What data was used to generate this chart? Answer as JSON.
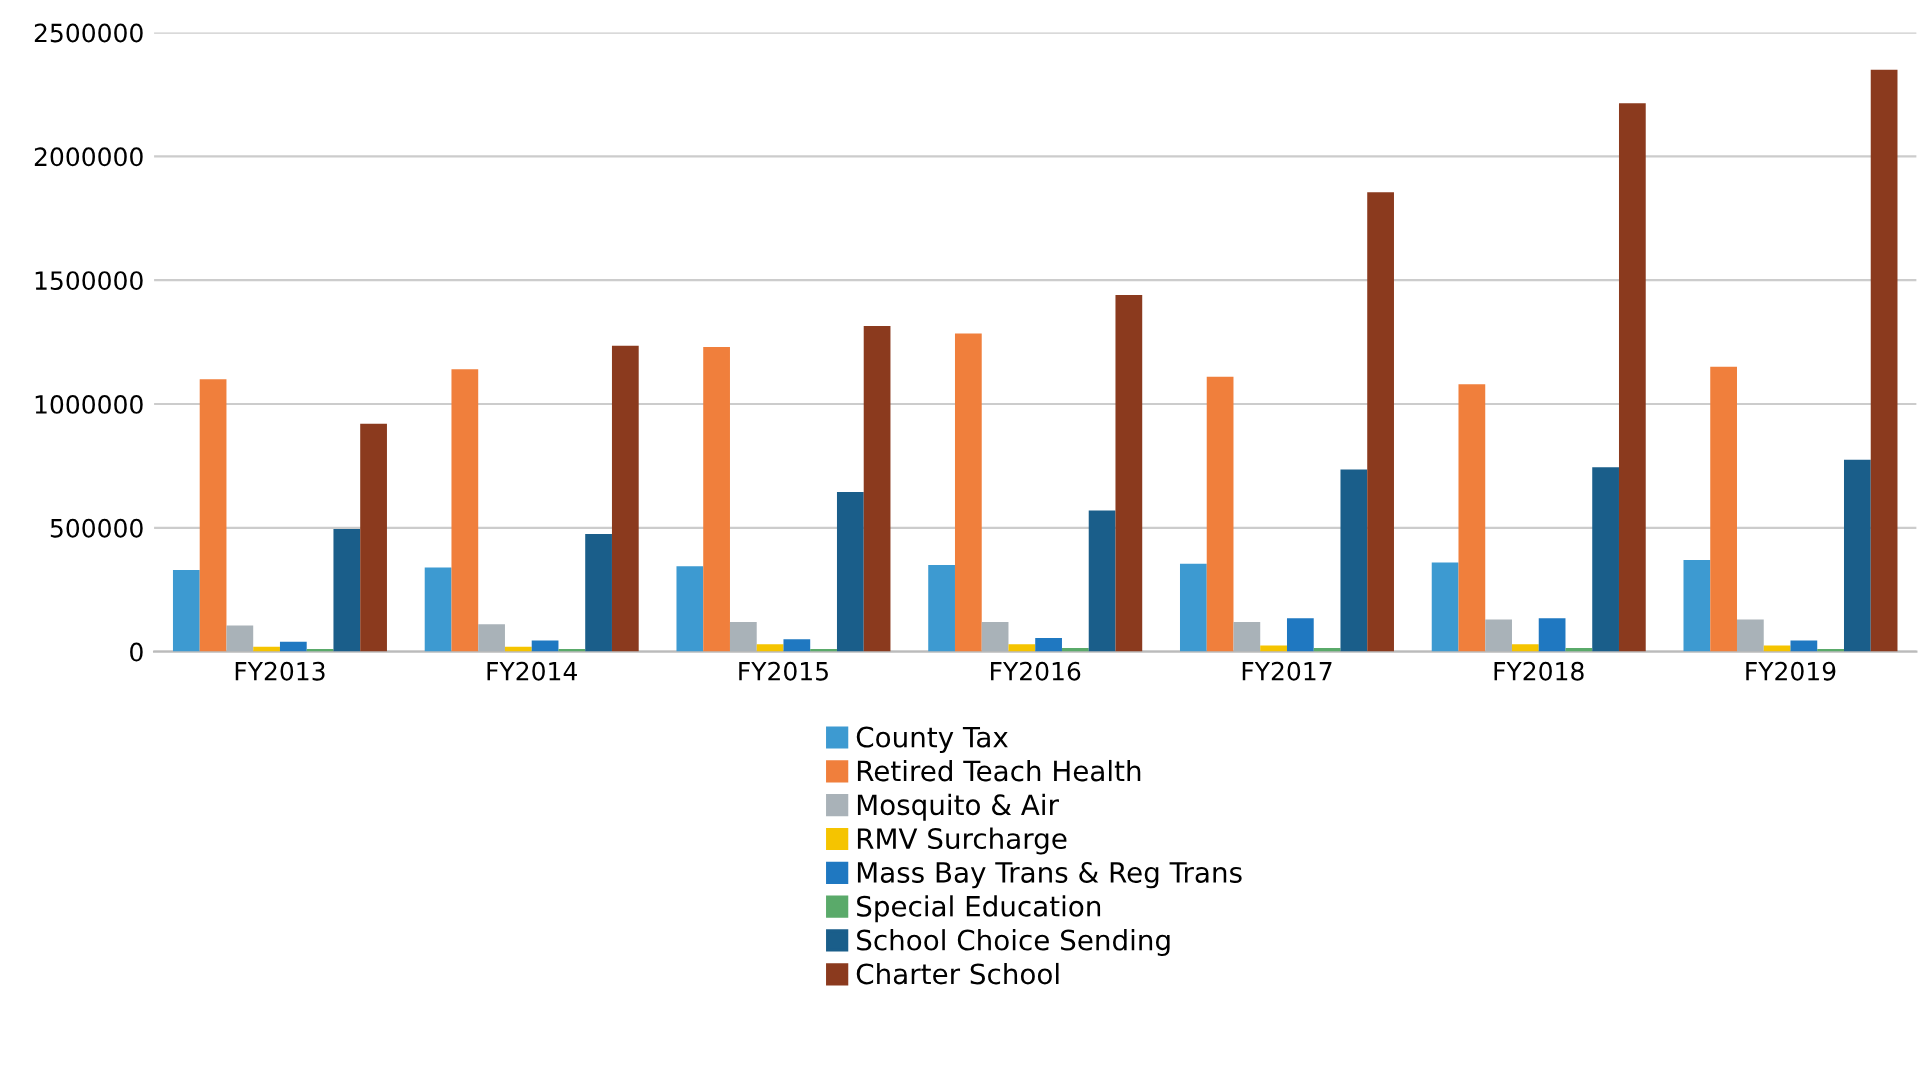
{
  "chart_data": {
    "type": "bar",
    "categories": [
      "FY2013",
      "FY2014",
      "FY2015",
      "FY2016",
      "FY2017",
      "FY2018",
      "FY2019"
    ],
    "series": [
      {
        "name": "County Tax",
        "color": "#3d9ad1",
        "values": [
          330000,
          340000,
          345000,
          350000,
          355000,
          360000,
          370000
        ]
      },
      {
        "name": "Retired Teach Health",
        "color": "#f07f3c",
        "values": [
          1100000,
          1140000,
          1230000,
          1285000,
          1110000,
          1080000,
          1150000
        ]
      },
      {
        "name": "Mosquito & Air",
        "color": "#a9b2b8",
        "values": [
          105000,
          110000,
          120000,
          120000,
          120000,
          130000,
          130000
        ]
      },
      {
        "name": "RMV Surcharge",
        "color": "#f5c400",
        "values": [
          20000,
          20000,
          30000,
          30000,
          25000,
          30000,
          25000
        ]
      },
      {
        "name": "Mass Bay Trans & Reg Trans",
        "color": "#1f78c1",
        "values": [
          40000,
          45000,
          50000,
          55000,
          135000,
          135000,
          45000
        ]
      },
      {
        "name": "Special Education",
        "color": "#5aaa6a",
        "values": [
          10000,
          10000,
          10000,
          15000,
          15000,
          15000,
          10000
        ]
      },
      {
        "name": "School Choice Sending",
        "color": "#1a5e8a",
        "values": [
          495000,
          475000,
          645000,
          570000,
          735000,
          745000,
          775000
        ]
      },
      {
        "name": "Charter School",
        "color": "#8b3a1e",
        "values": [
          920000,
          1235000,
          1315000,
          1440000,
          1855000,
          2215000,
          2350000
        ]
      }
    ],
    "ylim": [
      0,
      2500000
    ],
    "yticks": [
      0,
      500000,
      1000000,
      1500000,
      2000000,
      2500000
    ],
    "grid": "y",
    "legend": "bottom"
  }
}
